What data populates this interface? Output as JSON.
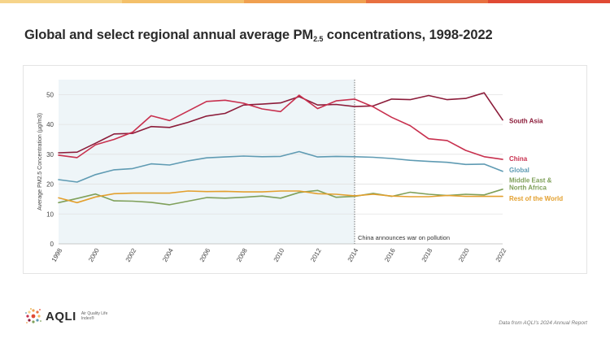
{
  "header": {
    "title_main": "Global and select regional annual average PM",
    "title_sub": "2.5",
    "title_rest": " concentrations, 1998-2022"
  },
  "footer": {
    "logo_text": "AQLI",
    "logo_tagline": "Air Quality Life Index®",
    "source": "Data from AQLI's 2024 Annual Report"
  },
  "colors": {
    "south_asia": "#8c1c3a",
    "china": "#c8304e",
    "global": "#5f9bb3",
    "mena": "#7fa05a",
    "rest": "#e3a02e",
    "shade": "#eef5f8",
    "top_bar": [
      "#f6d48a",
      "#f4c06a",
      "#f0a050",
      "#e87040",
      "#e04a34"
    ]
  },
  "chart_data": {
    "type": "line",
    "title": "Global and select regional annual average PM2.5 concentrations, 1998-2022",
    "ylabel": "Average PM2.5 Concentration (µg/m3)",
    "xlabel": "",
    "xlim": [
      1998,
      2022
    ],
    "ylim": [
      0,
      55
    ],
    "y_ticks": [
      0,
      10,
      20,
      30,
      40,
      50
    ],
    "x_ticks": [
      1998,
      2000,
      2002,
      2004,
      2006,
      2008,
      2010,
      2012,
      2014,
      2016,
      2018,
      2020,
      2022
    ],
    "grid": "horizontal",
    "legend": "inline-right",
    "shaded_region": [
      1998,
      2014
    ],
    "annotation": {
      "x": 2014,
      "text": "China announces war on pollution"
    },
    "x": [
      1998,
      1999,
      2000,
      2001,
      2002,
      2003,
      2004,
      2005,
      2006,
      2007,
      2008,
      2009,
      2010,
      2011,
      2012,
      2013,
      2014,
      2015,
      2016,
      2017,
      2018,
      2019,
      2020,
      2021,
      2022
    ],
    "series": [
      {
        "name": "South Asia",
        "key": "south_asia",
        "values": [
          30.5,
          30.7,
          33.7,
          36.8,
          37.0,
          39.3,
          39.0,
          40.7,
          42.8,
          43.7,
          46.5,
          46.8,
          47.2,
          49.3,
          46.5,
          46.7,
          46.0,
          46.2,
          48.5,
          48.3,
          49.7,
          48.3,
          48.7,
          50.6,
          41.5
        ]
      },
      {
        "name": "China",
        "key": "china",
        "values": [
          29.7,
          28.9,
          33.2,
          35.0,
          37.4,
          42.9,
          41.3,
          44.5,
          47.7,
          48.1,
          47.1,
          45.2,
          44.3,
          49.8,
          45.3,
          47.9,
          48.5,
          45.9,
          42.4,
          39.6,
          35.2,
          34.6,
          31.3,
          29.2,
          28.3
        ]
      },
      {
        "name": "Global",
        "key": "global",
        "values": [
          21.5,
          20.7,
          23.2,
          24.8,
          25.2,
          26.8,
          26.4,
          27.8,
          28.8,
          29.1,
          29.4,
          29.2,
          29.3,
          30.9,
          29.1,
          29.3,
          29.2,
          29.0,
          28.6,
          28.0,
          27.6,
          27.3,
          26.6,
          26.7,
          24.3
        ]
      },
      {
        "name": "Middle East & North Africa",
        "key": "mena",
        "label_lines": [
          "Middle East &",
          "North Africa"
        ],
        "values": [
          13.8,
          15.2,
          16.7,
          14.4,
          14.3,
          13.9,
          13.1,
          14.3,
          15.5,
          15.3,
          15.6,
          16.0,
          15.3,
          17.2,
          17.9,
          15.6,
          15.9,
          16.9,
          15.9,
          17.3,
          16.6,
          16.2,
          16.6,
          16.4,
          18.3
        ]
      },
      {
        "name": "Rest of the World",
        "key": "rest",
        "values": [
          15.4,
          13.8,
          15.7,
          16.8,
          17.0,
          17.0,
          17.0,
          17.7,
          17.5,
          17.6,
          17.4,
          17.4,
          17.7,
          17.7,
          16.8,
          16.6,
          16.1,
          16.6,
          16.0,
          15.8,
          15.8,
          16.2,
          15.9,
          15.9,
          15.9
        ]
      }
    ]
  }
}
